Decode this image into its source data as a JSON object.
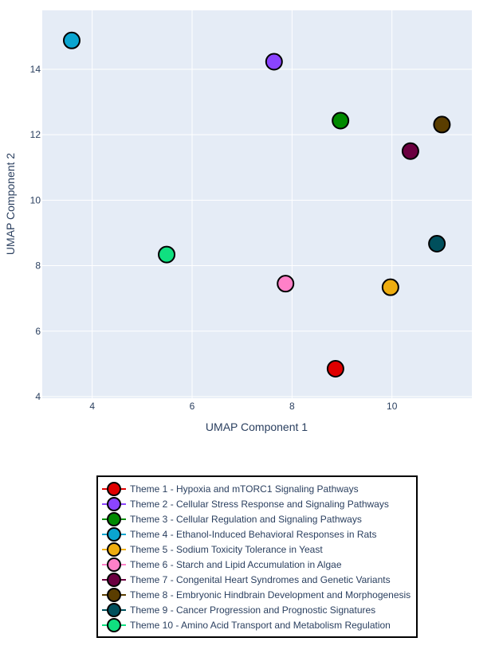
{
  "chart_data": {
    "type": "scatter",
    "xlabel": "UMAP Component 1",
    "ylabel": "UMAP Component 2",
    "xlim": [
      3,
      11.6
    ],
    "ylim": [
      3.95,
      15.8
    ],
    "x_ticks": [
      "4",
      "6",
      "8",
      "10"
    ],
    "y_ticks": [
      "4",
      "6",
      "8",
      "10",
      "12",
      "14"
    ],
    "grid": true,
    "legend_position": "bottom",
    "series": [
      {
        "name": "Theme 1 - Hypoxia and mTORC1 Signaling Pathways",
        "color": "#e00000",
        "x": 8.87,
        "y": 4.85
      },
      {
        "name": "Theme 2 - Cellular Stress Response and Signaling Pathways",
        "color": "#8b44ff",
        "x": 7.64,
        "y": 14.23
      },
      {
        "name": "Theme 3 - Cellular Regulation and Signaling Pathways",
        "color": "#008a00",
        "x": 8.97,
        "y": 12.43
      },
      {
        "name": "Theme 4 - Ethanol-Induced Behavioral Responses in Rats",
        "color": "#0aa5d0",
        "x": 3.59,
        "y": 14.88
      },
      {
        "name": "Theme 5 - Sodium Toxicity Tolerance in Yeast",
        "color": "#eead10",
        "x": 9.97,
        "y": 7.34
      },
      {
        "name": "Theme 6 - Starch and Lipid Accumulation in Algae",
        "color": "#ff80c8",
        "x": 7.87,
        "y": 7.45
      },
      {
        "name": "Theme 7 - Congenital Heart Syndromes and Genetic Variants",
        "color": "#6b0040",
        "x": 10.37,
        "y": 11.5
      },
      {
        "name": "Theme 8 - Embryonic Hindbrain Development and Morphogenesis",
        "color": "#5a3d00",
        "x": 11.0,
        "y": 12.31
      },
      {
        "name": "Theme 9 - Cancer Progression and Prognostic Signatures",
        "color": "#004f5c",
        "x": 10.9,
        "y": 8.67
      },
      {
        "name": "Theme 10 - Amino Acid Transport and Metabolism Regulation",
        "color": "#10e080",
        "x": 5.49,
        "y": 8.34
      }
    ]
  }
}
